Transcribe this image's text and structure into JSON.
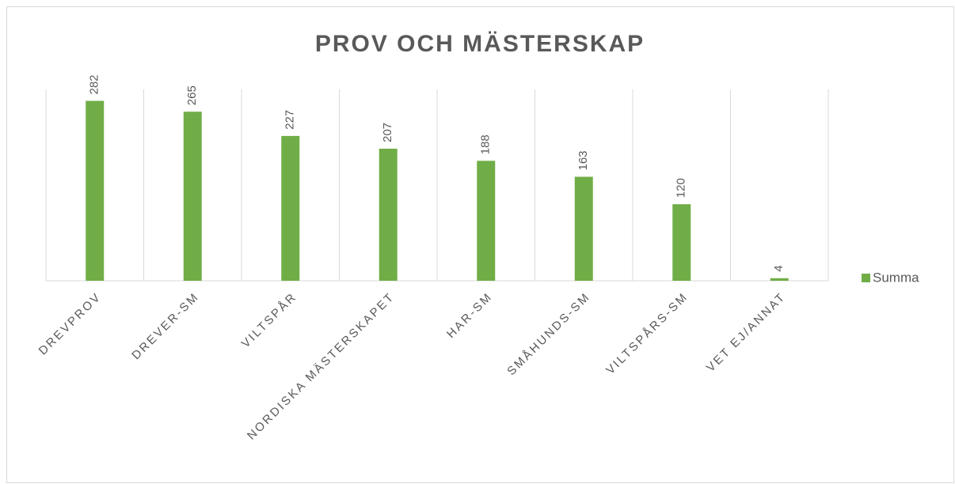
{
  "chart_data": {
    "type": "bar",
    "title": "PROV OCH MÄSTERSKAP",
    "categories": [
      "DREVPROV",
      "DREVER-SM",
      "VILTSPÅR",
      "NORDISKA MÄSTERSKAPET",
      "HAR-SM",
      "SMÅHUNDS-SM",
      "VILTSPÅRS-SM",
      "VET EJ/ANNAT"
    ],
    "series": [
      {
        "name": "Summa",
        "color": "#70ad47",
        "values": [
          282,
          265,
          227,
          207,
          188,
          163,
          120,
          4
        ]
      }
    ],
    "ylim": [
      0,
      300
    ],
    "legend": "right"
  }
}
